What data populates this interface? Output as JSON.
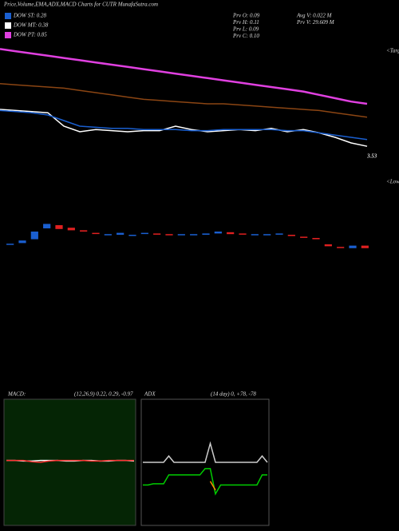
{
  "header": {
    "title": "Price,Volume,EMA,ADX,MACD Charts for CUTR MunafaSutra.com"
  },
  "legend": [
    {
      "label": "DOW ST: 0.28",
      "color": "#1a5fd0"
    },
    {
      "label": "DOW MT: 0.38",
      "color": "#ffffff"
    },
    {
      "label": "DOW PT: 0.85",
      "color": "#e040e0"
    }
  ],
  "prev": [
    "Prv O: 0.09",
    "Prv H: 0.11",
    "Prv L: 0.09",
    "Prv C: 0.10"
  ],
  "volume": [
    "Avg V: 0.022 M",
    "Prv V: 29.609 M"
  ],
  "price_label": "3.53",
  "side_labels": [
    "<Targe",
    "<Lows"
  ],
  "chart_data": [
    {
      "type": "line",
      "ylim": [
        0,
        100
      ],
      "series": [
        {
          "color": "#e040e0",
          "values": [
            99,
            97,
            95,
            93,
            91,
            89,
            87,
            85,
            83,
            81,
            79,
            77,
            75,
            73,
            71,
            69,
            67,
            65,
            63,
            61,
            58,
            55,
            52,
            50
          ]
        },
        {
          "color": "#8b4513",
          "values": [
            68,
            67,
            66,
            65,
            64,
            62,
            60,
            58,
            56,
            54,
            53,
            52,
            51,
            50,
            50,
            49,
            48,
            47,
            46,
            45,
            44,
            42,
            40,
            38
          ]
        },
        {
          "color": "#ffffff",
          "values": [
            45,
            44,
            43,
            42,
            30,
            25,
            27,
            26,
            25,
            26,
            26,
            30,
            27,
            25,
            26,
            27,
            26,
            28,
            25,
            27,
            24,
            20,
            15,
            12
          ]
        },
        {
          "color": "#1a5fd0",
          "values": [
            44,
            43,
            42,
            40,
            35,
            30,
            29,
            28,
            28,
            27,
            27,
            27,
            26,
            26,
            27,
            27,
            27,
            27,
            26,
            26,
            24,
            22,
            20,
            18
          ]
        }
      ]
    },
    {
      "type": "candlestick",
      "ylim": [
        0,
        100
      ],
      "open": [
        30,
        32,
        38,
        55,
        60,
        56,
        52,
        48,
        45,
        45,
        44,
        47,
        47,
        46,
        45,
        45,
        45,
        47,
        49,
        47,
        45,
        45,
        46,
        45,
        42,
        40,
        30,
        26,
        24,
        28
      ],
      "close": [
        31,
        36,
        50,
        62,
        54,
        52,
        50,
        47,
        46,
        48,
        45,
        48,
        46,
        45,
        46,
        46,
        47,
        50,
        46,
        46,
        46,
        46,
        47,
        43,
        41,
        38,
        27,
        25,
        28,
        24
      ]
    },
    {
      "type": "line",
      "title": "MACD:",
      "subtitle": "(12,26,9) 0.22, 0.29, -0.97",
      "ylim": [
        -1,
        1
      ],
      "series": [
        {
          "color": "#ffffff",
          "values": [
            0.03,
            0.03,
            0.02,
            0.02,
            0.03,
            0.03,
            0.03,
            0.02,
            0.02,
            0.03,
            0.03,
            0.02,
            0.02,
            0.03,
            0.03,
            0.02
          ]
        },
        {
          "color": "#ff3030",
          "values": [
            0.03,
            0.03,
            0.03,
            0.01,
            0.0,
            0.02,
            0.03,
            0.03,
            0.03,
            0.03,
            0.02,
            0.02,
            0.03,
            0.03,
            0.03,
            0.03
          ]
        }
      ]
    },
    {
      "type": "line",
      "title": "ADX",
      "subtitle": "(14 day) 0, +78, -78",
      "ylim": [
        0,
        100
      ],
      "series": [
        {
          "color": "#cccccc",
          "values": [
            50,
            50,
            50,
            50,
            50,
            55,
            50,
            50,
            50,
            50,
            50,
            50,
            50,
            65,
            50,
            50,
            50,
            50,
            50,
            50,
            50,
            50,
            50,
            55,
            50
          ]
        },
        {
          "color": "#00cc00",
          "values": [
            32,
            32,
            33,
            33,
            33,
            40,
            40,
            40,
            40,
            40,
            40,
            40,
            45,
            45,
            25,
            32,
            32,
            32,
            32,
            32,
            32,
            32,
            32,
            40,
            40
          ]
        },
        {
          "color": "#ff8c00",
          "values": [
            null,
            null,
            null,
            null,
            null,
            42,
            null,
            null,
            null,
            null,
            null,
            null,
            null,
            35,
            28,
            null,
            null,
            null,
            null,
            null,
            null,
            null,
            null,
            null,
            null
          ]
        }
      ]
    }
  ]
}
